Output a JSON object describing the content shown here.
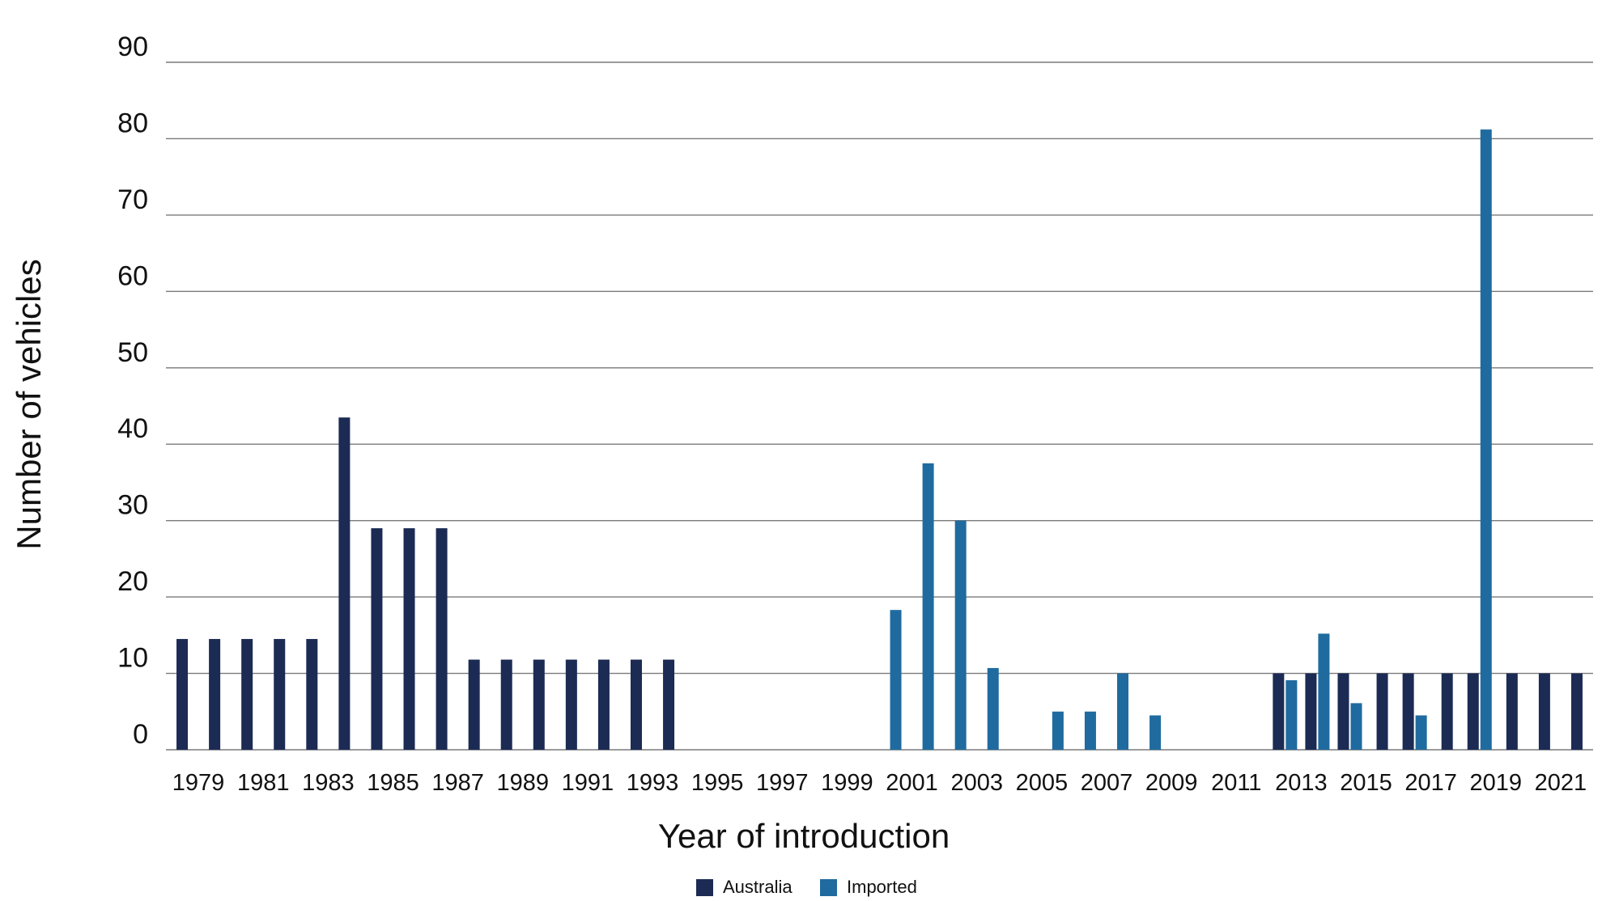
{
  "chart_data": {
    "type": "bar",
    "title": "",
    "xlabel": "Year of introduction",
    "ylabel": "Number of vehicles",
    "ylim": [
      0,
      90
    ],
    "yticks": [
      "0",
      "10",
      "20",
      "30",
      "40",
      "50",
      "60",
      "70",
      "80",
      "90"
    ],
    "grid": "horizontal",
    "legend_position": "bottom-center",
    "categories": [
      "1979",
      "1980",
      "1981",
      "1982",
      "1983",
      "1984",
      "1985",
      "1986",
      "1987",
      "1988",
      "1989",
      "1990",
      "1991",
      "1992",
      "1993",
      "1994",
      "1995",
      "1996",
      "1997",
      "1998",
      "1999",
      "2000",
      "2001",
      "2002",
      "2003",
      "2004",
      "2005",
      "2006",
      "2007",
      "2008",
      "2009",
      "2010",
      "2011",
      "2012",
      "2013",
      "2014",
      "2015",
      "2016",
      "2017",
      "2018",
      "2019",
      "2020",
      "2021",
      "2022"
    ],
    "xtick_labels": [
      "1979",
      "1981",
      "1983",
      "1985",
      "1987",
      "1989",
      "1991",
      "1993",
      "1995",
      "1997",
      "1999",
      "2001",
      "2003",
      "2005",
      "2007",
      "2009",
      "2011",
      "2013",
      "2015",
      "2017",
      "2019",
      "2021"
    ],
    "series": [
      {
        "name": "Australia",
        "color": "#1c2b54",
        "values": [
          14.5,
          14.5,
          14.5,
          14.5,
          14.5,
          43.5,
          29,
          29,
          29,
          11.8,
          11.8,
          11.8,
          11.8,
          11.8,
          11.8,
          11.8,
          0,
          0,
          0,
          0,
          0,
          0,
          0,
          0,
          0,
          0,
          0,
          0,
          0,
          0,
          0,
          0,
          0,
          0,
          10,
          10,
          10,
          10,
          10,
          10,
          10,
          10,
          10,
          10
        ]
      },
      {
        "name": "Imported",
        "color": "#1f6ba0",
        "values": [
          0,
          0,
          0,
          0,
          0,
          0,
          0,
          0,
          0,
          0,
          0,
          0,
          0,
          0,
          0,
          0,
          0,
          0,
          0,
          0,
          0,
          0,
          18.3,
          37.5,
          30,
          10.7,
          0,
          5,
          5,
          10,
          4.5,
          0,
          0,
          0,
          9.1,
          15.2,
          6.1,
          0,
          4.5,
          0,
          81.2,
          0,
          0,
          0
        ]
      }
    ]
  }
}
